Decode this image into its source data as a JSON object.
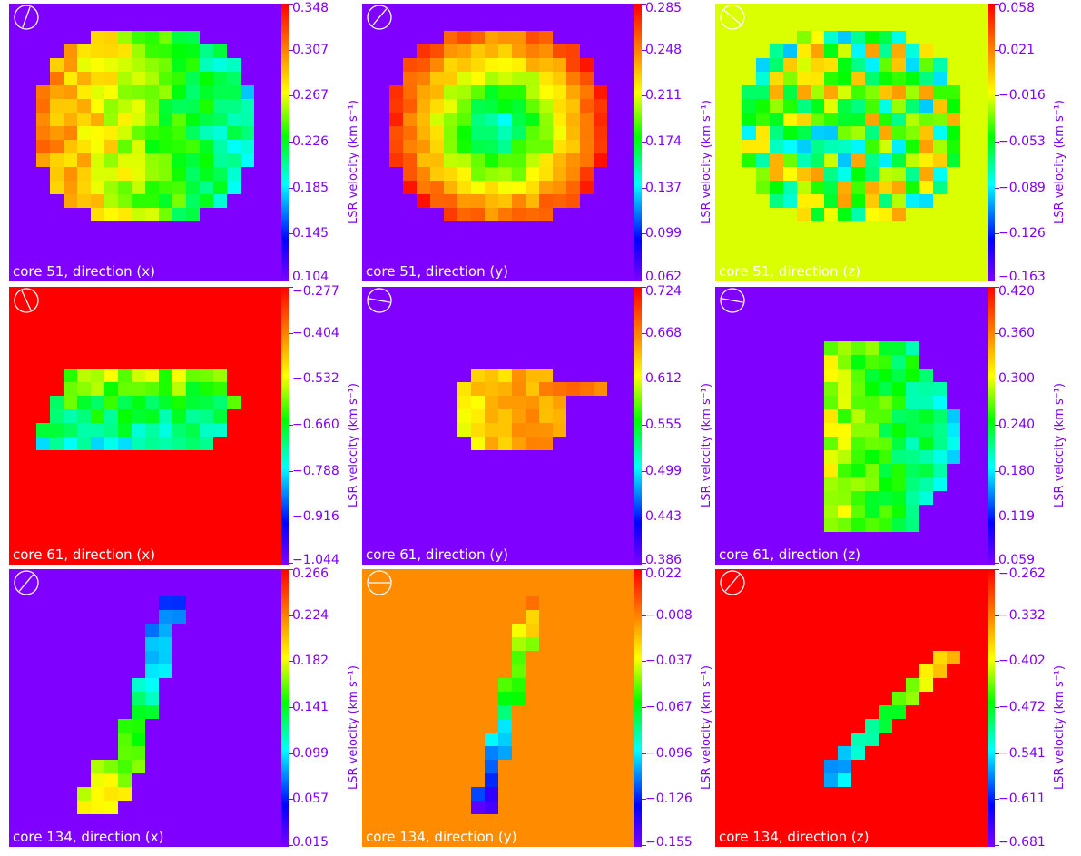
{
  "colorbar_label": "LSR velocity (km s⁻¹)",
  "colors": {
    "tick_text": "#7f00ff",
    "caption_text": "#ffffff",
    "beam_outline": "#ffffff"
  },
  "panels": [
    {
      "caption": "core 51, direction (x)",
      "background": "#7f00ff",
      "ticks": [
        "0.348",
        "0.307",
        "0.267",
        "0.226",
        "0.185",
        "0.145",
        "0.104"
      ],
      "vmin": 0.104,
      "vmax": 0.348,
      "beam_angle_deg": -20,
      "shape": "blob",
      "gradient": "left-high-right-low"
    },
    {
      "caption": "core 51, direction (y)",
      "background": "#7f00ff",
      "ticks": [
        "0.285",
        "0.248",
        "0.211",
        "0.174",
        "0.137",
        "0.099",
        "0.062"
      ],
      "vmin": 0.062,
      "vmax": 0.285,
      "beam_angle_deg": -40,
      "shape": "blob",
      "gradient": "edges-high-center-low"
    },
    {
      "caption": "core 51, direction (z)",
      "background": "#d9ff00",
      "ticks": [
        "0.058",
        "0.021",
        "−0.016",
        "−0.053",
        "−0.089",
        "−0.126",
        "−0.163"
      ],
      "vmin": -0.163,
      "vmax": 0.058,
      "beam_angle_deg": 50,
      "shape": "blob",
      "gradient": "mixed"
    },
    {
      "caption": "core 61, direction (x)",
      "background": "#ff0000",
      "ticks": [
        "−0.277",
        "−0.404",
        "−0.532",
        "−0.660",
        "−0.788",
        "−0.916",
        "−1.044"
      ],
      "vmin": -1.044,
      "vmax": -0.277,
      "beam_angle_deg": 25,
      "shape": "cigar",
      "gradient": "top-high-bottom-low"
    },
    {
      "caption": "core 61, direction (y)",
      "background": "#7f00ff",
      "ticks": [
        "0.724",
        "0.668",
        "0.612",
        "0.555",
        "0.499",
        "0.443",
        "0.386"
      ],
      "vmin": 0.386,
      "vmax": 0.724,
      "beam_angle_deg": 80,
      "shape": "small",
      "gradient": "right-high"
    },
    {
      "caption": "core 61, direction (z)",
      "background": "#7f00ff",
      "ticks": [
        "0.420",
        "0.360",
        "0.300",
        "0.240",
        "0.180",
        "0.119",
        "0.059"
      ],
      "vmin": 0.059,
      "vmax": 0.42,
      "beam_angle_deg": 80,
      "shape": "dshape",
      "gradient": "left-high-right-low"
    },
    {
      "caption": "core 134, direction (x)",
      "background": "#7f00ff",
      "ticks": [
        "0.266",
        "0.224",
        "0.182",
        "0.141",
        "0.099",
        "0.057",
        "0.015"
      ],
      "vmin": 0.015,
      "vmax": 0.266,
      "beam_angle_deg": -40,
      "shape": "arc",
      "gradient": "bottom-high"
    },
    {
      "caption": "core 134, direction (y)",
      "background": "#ff8c00",
      "ticks": [
        "0.022",
        "−0.008",
        "−0.037",
        "−0.067",
        "−0.096",
        "−0.126",
        "−0.155"
      ],
      "vmin": -0.155,
      "vmax": 0.022,
      "beam_angle_deg": 90,
      "shape": "filament",
      "gradient": "top-high-bottom-low"
    },
    {
      "caption": "core 134, direction (z)",
      "background": "#ff0000",
      "ticks": [
        "−0.262",
        "−0.332",
        "−0.402",
        "−0.472",
        "−0.541",
        "−0.611",
        "−0.681"
      ],
      "vmin": -0.681,
      "vmax": -0.262,
      "beam_angle_deg": -40,
      "shape": "diagonal",
      "gradient": "left-low-right-high"
    }
  ]
}
